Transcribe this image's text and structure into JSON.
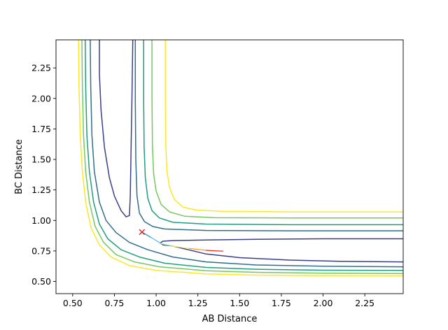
{
  "chart_data": {
    "type": "line",
    "title": "",
    "xlabel": "AB Distance",
    "ylabel": "BC Distance",
    "xlim": [
      0.4,
      2.48
    ],
    "ylim": [
      0.4,
      2.48
    ],
    "xticks": [
      0.5,
      0.75,
      1.0,
      1.25,
      1.5,
      1.75,
      2.0,
      2.25
    ],
    "xtick_labels": [
      "0.50",
      "0.75",
      "1.00",
      "1.25",
      "1.50",
      "1.75",
      "2.00",
      "2.25"
    ],
    "yticks": [
      0.5,
      0.75,
      1.0,
      1.25,
      1.5,
      1.75,
      2.0,
      2.25
    ],
    "ytick_labels": [
      "0.50",
      "0.75",
      "1.00",
      "1.25",
      "1.50",
      "1.75",
      "2.00",
      "2.25"
    ],
    "grid": false,
    "contours": [
      {
        "color": "#3b3f8a",
        "paths": [
          [
            [
              0.66,
              2.48
            ],
            [
              0.66,
              2.2
            ],
            [
              0.67,
              1.9
            ],
            [
              0.69,
              1.6
            ],
            [
              0.72,
              1.35
            ],
            [
              0.75,
              1.2
            ],
            [
              0.79,
              1.08
            ],
            [
              0.82,
              1.03
            ],
            [
              0.84,
              1.04
            ],
            [
              0.845,
              1.2
            ],
            [
              0.85,
              1.6
            ],
            [
              0.855,
              2.0
            ],
            [
              0.86,
              2.48
            ]
          ],
          [
            [
              2.48,
              0.85
            ],
            [
              2.0,
              0.85
            ],
            [
              1.6,
              0.845
            ],
            [
              1.3,
              0.84
            ],
            [
              1.1,
              0.835
            ],
            [
              1.04,
              0.83
            ],
            [
              1.025,
              0.815
            ],
            [
              1.04,
              0.8
            ],
            [
              1.1,
              0.79
            ],
            [
              1.3,
              0.725
            ],
            [
              1.5,
              0.695
            ],
            [
              1.8,
              0.675
            ],
            [
              2.1,
              0.665
            ],
            [
              2.48,
              0.66
            ]
          ]
        ]
      },
      {
        "color": "#2f6e8e",
        "paths": [
          [
            [
              0.605,
              2.48
            ],
            [
              0.608,
              2.1
            ],
            [
              0.615,
              1.7
            ],
            [
              0.63,
              1.4
            ],
            [
              0.66,
              1.15
            ],
            [
              0.7,
              1.0
            ],
            [
              0.76,
              0.9
            ],
            [
              0.84,
              0.82
            ],
            [
              0.95,
              0.76
            ],
            [
              1.1,
              0.7
            ],
            [
              1.3,
              0.66
            ],
            [
              1.6,
              0.635
            ],
            [
              2.0,
              0.625
            ],
            [
              2.48,
              0.62
            ]
          ]
        ]
      },
      {
        "color": "#1f9e7e",
        "paths": [
          [
            [
              0.575,
              2.48
            ],
            [
              0.578,
              2.1
            ],
            [
              0.585,
              1.7
            ],
            [
              0.6,
              1.4
            ],
            [
              0.625,
              1.15
            ],
            [
              0.66,
              0.97
            ],
            [
              0.71,
              0.85
            ],
            [
              0.79,
              0.76
            ],
            [
              0.9,
              0.7
            ],
            [
              1.05,
              0.65
            ],
            [
              1.3,
              0.615
            ],
            [
              1.6,
              0.6
            ],
            [
              2.0,
              0.592
            ],
            [
              2.48,
              0.59
            ]
          ]
        ]
      },
      {
        "color": "#74c95c",
        "paths": [
          [
            [
              0.555,
              2.48
            ],
            [
              0.558,
              2.1
            ],
            [
              0.565,
              1.7
            ],
            [
              0.578,
              1.4
            ],
            [
              0.6,
              1.15
            ],
            [
              0.635,
              0.95
            ],
            [
              0.685,
              0.82
            ],
            [
              0.76,
              0.72
            ],
            [
              0.87,
              0.66
            ],
            [
              1.02,
              0.62
            ],
            [
              1.3,
              0.588
            ],
            [
              1.6,
              0.575
            ],
            [
              2.0,
              0.568
            ],
            [
              2.48,
              0.565
            ]
          ]
        ]
      },
      {
        "color": "#fde725",
        "paths": [
          [
            [
              0.535,
              2.48
            ],
            [
              0.538,
              2.1
            ],
            [
              0.545,
              1.7
            ],
            [
              0.558,
              1.4
            ],
            [
              0.578,
              1.15
            ],
            [
              0.61,
              0.94
            ],
            [
              0.66,
              0.8
            ],
            [
              0.73,
              0.7
            ],
            [
              0.84,
              0.63
            ],
            [
              1.0,
              0.59
            ],
            [
              1.3,
              0.562
            ],
            [
              1.6,
              0.552
            ],
            [
              2.0,
              0.547
            ],
            [
              2.48,
              0.545
            ]
          ]
        ]
      },
      {
        "color": "#2f6e8e",
        "paths": [
          [
            [
              0.875,
              2.48
            ],
            [
              0.875,
              2.0
            ],
            [
              0.878,
              1.5
            ],
            [
              0.885,
              1.2
            ],
            [
              0.9,
              1.06
            ],
            [
              0.93,
              0.99
            ],
            [
              0.98,
              0.95
            ],
            [
              1.05,
              0.93
            ],
            [
              1.3,
              0.918
            ],
            [
              1.8,
              0.915
            ],
            [
              2.48,
              0.915
            ]
          ]
        ]
      },
      {
        "color": "#1f9e7e",
        "paths": [
          [
            [
              0.925,
              2.48
            ],
            [
              0.925,
              2.0
            ],
            [
              0.928,
              1.6
            ],
            [
              0.935,
              1.35
            ],
            [
              0.95,
              1.18
            ],
            [
              0.975,
              1.08
            ],
            [
              1.02,
              1.02
            ],
            [
              1.1,
              0.985
            ],
            [
              1.3,
              0.97
            ],
            [
              1.8,
              0.965
            ],
            [
              2.48,
              0.965
            ]
          ]
        ]
      },
      {
        "color": "#74c95c",
        "paths": [
          [
            [
              0.975,
              2.48
            ],
            [
              0.975,
              2.0
            ],
            [
              0.978,
              1.6
            ],
            [
              0.985,
              1.38
            ],
            [
              1.0,
              1.24
            ],
            [
              1.03,
              1.13
            ],
            [
              1.08,
              1.07
            ],
            [
              1.17,
              1.035
            ],
            [
              1.35,
              1.022
            ],
            [
              1.8,
              1.02
            ],
            [
              2.48,
              1.02
            ]
          ]
        ]
      },
      {
        "color": "#fde725",
        "paths": [
          [
            [
              1.055,
              2.48
            ],
            [
              1.055,
              2.0
            ],
            [
              1.058,
              1.6
            ],
            [
              1.065,
              1.4
            ],
            [
              1.08,
              1.27
            ],
            [
              1.11,
              1.17
            ],
            [
              1.16,
              1.11
            ],
            [
              1.24,
              1.085
            ],
            [
              1.4,
              1.075
            ],
            [
              1.8,
              1.07
            ],
            [
              2.48,
              1.07
            ]
          ]
        ]
      }
    ],
    "trajectory": {
      "colors": [
        "#1e8fe0",
        "#58c6e8",
        "#a8f0a8",
        "#f2f07a",
        "#f5a040",
        "#e8321e"
      ],
      "points": [
        [
          0.92,
          0.9
        ],
        [
          0.97,
          0.86
        ],
        [
          1.03,
          0.81
        ],
        [
          1.1,
          0.79
        ],
        [
          1.2,
          0.77
        ],
        [
          1.3,
          0.755
        ],
        [
          1.4,
          0.748
        ]
      ]
    },
    "marker": {
      "x": 0.915,
      "y": 0.905,
      "symbol": "x",
      "color": "#e8201e"
    }
  }
}
